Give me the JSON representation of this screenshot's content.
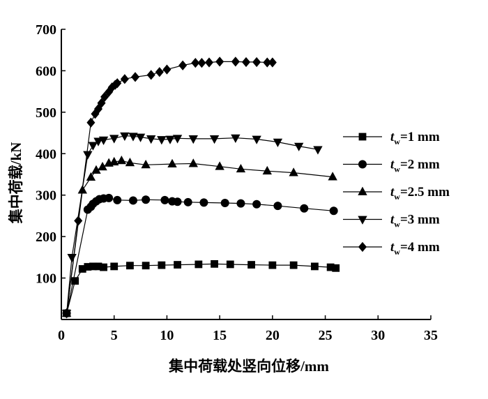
{
  "chart_data": {
    "type": "line",
    "title": "",
    "xlabel": "集中荷载处竖向位移/mm",
    "ylabel": "集中荷载/kN",
    "xlim": [
      0,
      35
    ],
    "ylim": [
      0,
      700
    ],
    "xticks": [
      0,
      5,
      10,
      15,
      20,
      25,
      30,
      35
    ],
    "yticks": [
      100,
      200,
      300,
      400,
      500,
      600,
      700
    ],
    "legend_position": "right",
    "grid": false,
    "series": [
      {
        "name": "1 mm",
        "var": "t",
        "sub": "w",
        "marker": "square",
        "points": [
          [
            0.5,
            15
          ],
          [
            1.3,
            93
          ],
          [
            2.0,
            122
          ],
          [
            2.5,
            127
          ],
          [
            3.0,
            128
          ],
          [
            3.5,
            128
          ],
          [
            4.0,
            126
          ],
          [
            5.0,
            128
          ],
          [
            6.5,
            130
          ],
          [
            8.0,
            130
          ],
          [
            9.5,
            131
          ],
          [
            11.0,
            132
          ],
          [
            13.0,
            133
          ],
          [
            14.5,
            134
          ],
          [
            16.0,
            133
          ],
          [
            18.0,
            132
          ],
          [
            20.0,
            131
          ],
          [
            22.0,
            131
          ],
          [
            24.0,
            128
          ],
          [
            25.5,
            126
          ],
          [
            26.0,
            124
          ]
        ]
      },
      {
        "name": "2 mm",
        "var": "t",
        "sub": "w",
        "marker": "circle",
        "points": [
          [
            0.5,
            15
          ],
          [
            2.5,
            265
          ],
          [
            2.8,
            272
          ],
          [
            3.0,
            279
          ],
          [
            3.3,
            285
          ],
          [
            3.6,
            290
          ],
          [
            4.0,
            292
          ],
          [
            4.5,
            293
          ],
          [
            5.3,
            288
          ],
          [
            6.8,
            287
          ],
          [
            8.0,
            289
          ],
          [
            9.8,
            288
          ],
          [
            10.5,
            285
          ],
          [
            11.0,
            284
          ],
          [
            12.0,
            283
          ],
          [
            13.5,
            282
          ],
          [
            15.5,
            281
          ],
          [
            17.0,
            280
          ],
          [
            18.5,
            278
          ],
          [
            20.5,
            274
          ],
          [
            23.0,
            268
          ],
          [
            25.8,
            262
          ]
        ]
      },
      {
        "name": "2.5 mm",
        "var": "t",
        "sub": "w",
        "marker": "triangle-up",
        "points": [
          [
            0.5,
            15
          ],
          [
            2.0,
            312
          ],
          [
            2.8,
            343
          ],
          [
            3.3,
            360
          ],
          [
            3.9,
            368
          ],
          [
            4.5,
            377
          ],
          [
            5.0,
            380
          ],
          [
            5.7,
            383
          ],
          [
            6.5,
            378
          ],
          [
            8.0,
            373
          ],
          [
            10.5,
            375
          ],
          [
            12.5,
            376
          ],
          [
            15.0,
            369
          ],
          [
            17.0,
            363
          ],
          [
            19.5,
            358
          ],
          [
            22.0,
            354
          ],
          [
            25.7,
            344
          ]
        ]
      },
      {
        "name": "3 mm",
        "var": "t",
        "sub": "w",
        "marker": "triangle-down",
        "points": [
          [
            0.5,
            15
          ],
          [
            1.0,
            150
          ],
          [
            2.5,
            398
          ],
          [
            3.0,
            420
          ],
          [
            3.5,
            430
          ],
          [
            4.0,
            433
          ],
          [
            5.0,
            437
          ],
          [
            6.0,
            443
          ],
          [
            6.8,
            442
          ],
          [
            7.5,
            440
          ],
          [
            8.5,
            436
          ],
          [
            9.5,
            434
          ],
          [
            10.3,
            435
          ],
          [
            11.0,
            437
          ],
          [
            12.5,
            436
          ],
          [
            14.5,
            436
          ],
          [
            16.5,
            438
          ],
          [
            18.5,
            435
          ],
          [
            20.5,
            428
          ],
          [
            22.5,
            418
          ],
          [
            24.3,
            410
          ]
        ]
      },
      {
        "name": "4 mm",
        "var": "t",
        "sub": "w",
        "marker": "diamond",
        "points": [
          [
            0.5,
            15
          ],
          [
            1.6,
            238
          ],
          [
            2.8,
            475
          ],
          [
            3.2,
            496
          ],
          [
            3.5,
            508
          ],
          [
            3.8,
            522
          ],
          [
            4.1,
            537
          ],
          [
            4.5,
            549
          ],
          [
            4.8,
            560
          ],
          [
            5.1,
            566
          ],
          [
            5.3,
            570
          ],
          [
            6.0,
            580
          ],
          [
            7.0,
            585
          ],
          [
            8.5,
            590
          ],
          [
            9.3,
            597
          ],
          [
            10.0,
            603
          ],
          [
            11.5,
            613
          ],
          [
            12.7,
            619
          ],
          [
            13.3,
            619
          ],
          [
            14.0,
            620
          ],
          [
            15.0,
            622
          ],
          [
            16.5,
            622
          ],
          [
            17.5,
            621
          ],
          [
            18.5,
            621
          ],
          [
            19.5,
            620
          ],
          [
            20.0,
            620
          ]
        ]
      }
    ]
  }
}
